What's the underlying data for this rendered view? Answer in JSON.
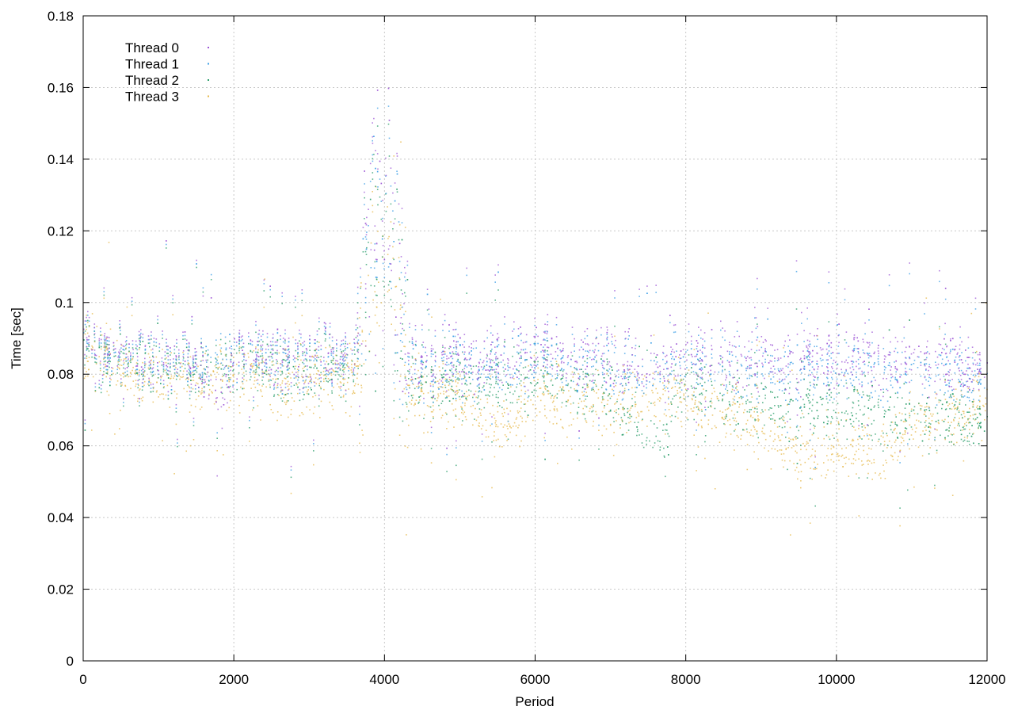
{
  "chart_data": {
    "type": "scatter",
    "title": "",
    "xlabel": "Period",
    "ylabel": "Time [sec]",
    "xlim": [
      0,
      12000
    ],
    "ylim": [
      0,
      0.18
    ],
    "x_ticks": [
      0,
      2000,
      4000,
      6000,
      8000,
      10000,
      12000
    ],
    "x_tick_labels": [
      "0",
      "2000",
      "4000",
      "6000",
      "8000",
      "10000",
      "12000"
    ],
    "y_ticks": [
      0,
      0.02,
      0.04,
      0.06,
      0.08,
      0.1,
      0.12,
      0.14,
      0.16,
      0.18
    ],
    "y_tick_labels": [
      "0",
      "0.02",
      "0.04",
      "0.06",
      "0.08",
      "0.1",
      "0.12",
      "0.14",
      "0.16",
      "0.18"
    ],
    "grid": true,
    "legend_position": "top-left",
    "series": [
      {
        "name": "Thread 0",
        "color": "#9c55d6",
        "x": [
          0,
          100,
          300,
          600,
          1000,
          1500,
          1700,
          1800,
          2000,
          2500,
          3000,
          3600,
          3800,
          4000,
          4200,
          4300,
          5000,
          6000,
          7000,
          7700,
          7900,
          9000,
          10000,
          11000,
          12000
        ],
        "y": [
          0.093,
          0.089,
          0.087,
          0.085,
          0.085,
          0.084,
          0.077,
          0.07,
          0.086,
          0.085,
          0.085,
          0.086,
          0.12,
          0.125,
          0.12,
          0.085,
          0.085,
          0.085,
          0.085,
          0.082,
          0.086,
          0.085,
          0.084,
          0.084,
          0.085
        ]
      },
      {
        "name": "Thread 1",
        "color": "#3b9ee6",
        "x": [
          0,
          100,
          300,
          600,
          1000,
          1500,
          2000,
          2500,
          3000,
          3600,
          3800,
          4000,
          4200,
          4300,
          5000,
          6000,
          7000,
          7700,
          7900,
          9000,
          10000,
          11000,
          12000
        ],
        "y": [
          0.092,
          0.088,
          0.086,
          0.084,
          0.084,
          0.083,
          0.085,
          0.084,
          0.084,
          0.085,
          0.115,
          0.12,
          0.115,
          0.084,
          0.083,
          0.083,
          0.083,
          0.08,
          0.084,
          0.082,
          0.081,
          0.081,
          0.082
        ]
      },
      {
        "name": "Thread 2",
        "color": "#2a9d6a",
        "x": [
          0,
          100,
          300,
          600,
          1000,
          1500,
          2000,
          2500,
          3000,
          3600,
          3800,
          4000,
          4200,
          4300,
          5000,
          6000,
          7000,
          7700,
          7900,
          9000,
          10000,
          11000,
          12000
        ],
        "y": [
          0.09,
          0.087,
          0.085,
          0.083,
          0.083,
          0.082,
          0.083,
          0.082,
          0.082,
          0.083,
          0.11,
          0.115,
          0.11,
          0.08,
          0.078,
          0.078,
          0.076,
          0.06,
          0.078,
          0.072,
          0.07,
          0.068,
          0.07
        ]
      },
      {
        "name": "Thread 3",
        "color": "#e6b84a",
        "x": [
          0,
          100,
          300,
          600,
          1000,
          1500,
          2000,
          2500,
          3000,
          3600,
          3800,
          4000,
          4200,
          4300,
          5000,
          5400,
          6000,
          7000,
          7900,
          9000,
          9600,
          10000,
          10500,
          11000,
          12000
        ],
        "y": [
          0.089,
          0.087,
          0.084,
          0.08,
          0.08,
          0.078,
          0.08,
          0.077,
          0.078,
          0.08,
          0.1,
          0.11,
          0.105,
          0.076,
          0.074,
          0.065,
          0.073,
          0.072,
          0.074,
          0.066,
          0.058,
          0.06,
          0.058,
          0.066,
          0.072
        ]
      }
    ]
  }
}
